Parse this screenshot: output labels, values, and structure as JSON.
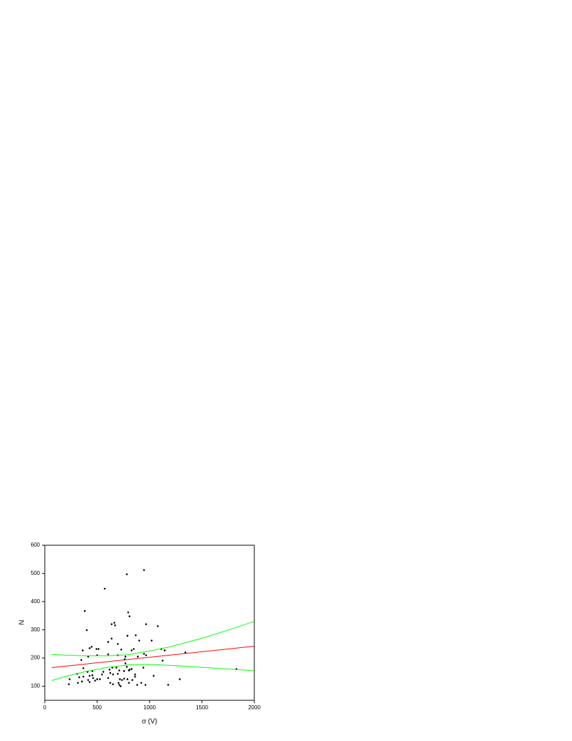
{
  "chart_data": {
    "type": "scatter",
    "x_label": "σ (V)",
    "y_label": "N",
    "xlim": [
      0,
      2000
    ],
    "ylim": [
      50,
      600
    ],
    "xticks": [
      0,
      500,
      1000,
      1500,
      2000
    ],
    "yticks": [
      100,
      200,
      300,
      400,
      500,
      600
    ],
    "series": [
      {
        "mode": "scatter",
        "color": "#000000",
        "x": [
          947,
          783,
          572,
          382,
          796,
          809,
          664,
          671,
          638,
          967,
          1079,
          401,
          789,
          868,
          638,
          1020,
          901,
          605,
          697,
          447,
          428,
          493,
          513,
          730,
          849,
          1112,
          1145,
          362,
          829,
          1342,
          947,
          967,
          605,
          697,
          414,
          500,
          770,
          888,
          763,
          1125,
          349,
          770,
          1829,
          368,
          941,
          645,
          684,
          783,
          829,
          618,
          559,
          803,
          711,
          757,
          809,
          408,
          454,
          309,
          625,
          697,
          862,
          651,
          428,
          454,
          546,
          368,
          329,
          862,
          1039,
          605,
          461,
          526,
          500,
          237,
          414,
          737,
          1289,
          717,
          757,
          836,
          480,
          789,
          355,
          428,
          625,
          704,
          921,
          803,
          316,
          711,
          724,
          882,
          230,
          961,
          1178,
          651
        ],
        "values": [
          512,
          497,
          446,
          367,
          362,
          348,
          325,
          316,
          320,
          320,
          313,
          299,
          279,
          281,
          269,
          262,
          262,
          257,
          250,
          240,
          235,
          232,
          232,
          230,
          232,
          232,
          227,
          227,
          227,
          220,
          215,
          210,
          213,
          210,
          205,
          210,
          205,
          205,
          196,
          191,
          193,
          181,
          161,
          164,
          166,
          166,
          166,
          169,
          161,
          159,
          151,
          156,
          156,
          154,
          159,
          151,
          154,
          144,
          147,
          144,
          142,
          142,
          137,
          139,
          142,
          134,
          132,
          134,
          137,
          129,
          129,
          125,
          125,
          125,
          122,
          122,
          125,
          125,
          127,
          122,
          120,
          125,
          117,
          115,
          112,
          112,
          112,
          112,
          112,
          105,
          100,
          105,
          107,
          105,
          105,
          107
        ]
      },
      {
        "mode": "line",
        "color": "#ff0000",
        "x": [
          66,
          2000
        ],
        "values": [
          166,
          242
        ]
      },
      {
        "mode": "line",
        "color": "#00ff00",
        "x": [
          66,
          200,
          400,
          600,
          800,
          1000,
          1200,
          1500,
          1800,
          2000
        ],
        "values": [
          213,
          210,
          208,
          208,
          212,
          225,
          240,
          270,
          305,
          330
        ]
      },
      {
        "mode": "line",
        "color": "#00ff00",
        "x": [
          66,
          200,
          400,
          600,
          800,
          1000,
          1200,
          1500,
          1800,
          2000
        ],
        "values": [
          120,
          135,
          153,
          167,
          176,
          177,
          174,
          167,
          160,
          155
        ]
      }
    ]
  }
}
